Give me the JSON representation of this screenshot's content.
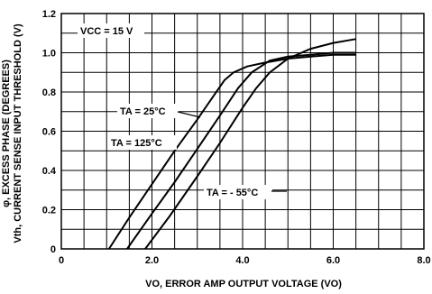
{
  "chart_data": {
    "type": "line",
    "xlabel": "VO, ERROR AMP OUTPUT VOLTAGE (VO)",
    "ylabel_lines": [
      "φ, EXCESS PHASE (DEGREES)",
      "Vth, CURRENT SENSE INPUT THRESHOLD (V)"
    ],
    "xlim": [
      0,
      8.0
    ],
    "ylim": [
      0,
      1.2
    ],
    "x_ticks": [
      "0",
      "2.0",
      "4.0",
      "6.0",
      "8.0"
    ],
    "y_ticks": [
      "0",
      "0.2",
      "0.4",
      "0.6",
      "0.8",
      "1.0",
      "1.2"
    ],
    "grid": true,
    "annotations": {
      "vcc": "VCC = 15 V",
      "ta25": "TA = 25°C",
      "ta125": "TA = 125°C",
      "ta55": "TA = - 55°C"
    },
    "series": [
      {
        "name": "TA = 125°C",
        "x": [
          1.05,
          1.5,
          2.0,
          2.5,
          3.0,
          3.3,
          3.6,
          3.8,
          4.1,
          4.5,
          5.0,
          5.5,
          6.0,
          6.5
        ],
        "y": [
          0.0,
          0.16,
          0.33,
          0.5,
          0.66,
          0.76,
          0.86,
          0.9,
          0.93,
          0.95,
          0.97,
          0.98,
          0.99,
          0.99
        ]
      },
      {
        "name": "TA = 25°C",
        "x": [
          1.45,
          2.0,
          2.5,
          3.0,
          3.5,
          3.9,
          4.2,
          4.6,
          5.0,
          5.5,
          6.0,
          6.5
        ],
        "y": [
          0.0,
          0.18,
          0.34,
          0.51,
          0.68,
          0.82,
          0.9,
          0.96,
          0.98,
          0.99,
          1.0,
          1.0
        ]
      },
      {
        "name": "TA = - 55°C",
        "x": [
          1.85,
          2.4,
          3.0,
          3.5,
          4.0,
          4.3,
          4.6,
          5.0,
          5.5,
          6.0,
          6.5
        ],
        "y": [
          0.0,
          0.17,
          0.37,
          0.54,
          0.72,
          0.82,
          0.9,
          0.97,
          1.02,
          1.05,
          1.07
        ]
      }
    ]
  }
}
